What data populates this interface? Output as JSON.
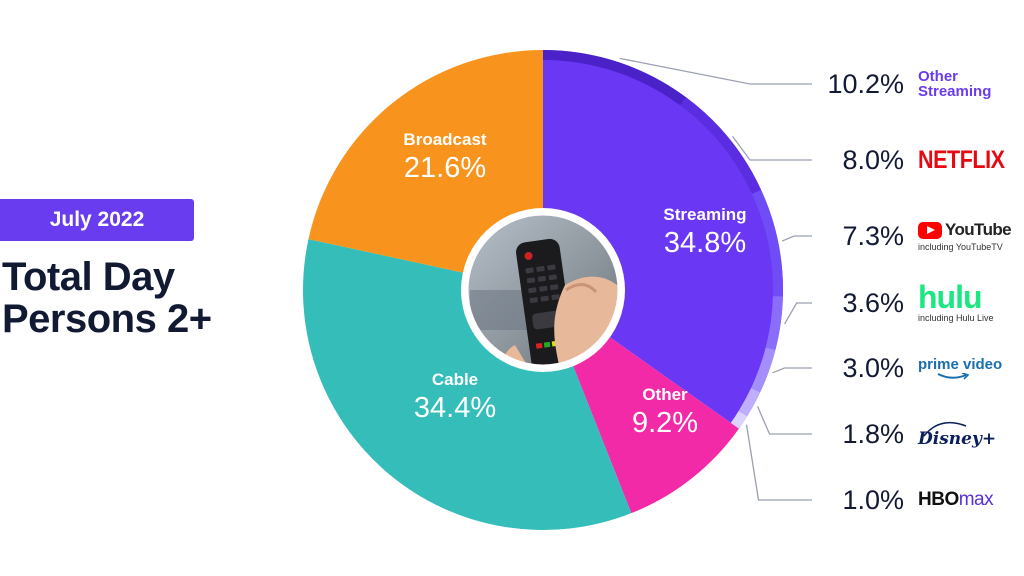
{
  "header": {
    "badge": "July 2022",
    "title_line1": "Total Day",
    "title_line2": "Persons 2+"
  },
  "chart_data": {
    "type": "pie",
    "variant": "donut",
    "categories": [
      "Streaming",
      "Other",
      "Cable",
      "Broadcast"
    ],
    "values": [
      34.8,
      9.2,
      34.4,
      21.6
    ],
    "labels": [
      "34.8%",
      "9.2%",
      "34.4%",
      "21.6%"
    ],
    "colors": [
      "#6a38f5",
      "#f22aa8",
      "#34bdb9",
      "#f8941d"
    ],
    "streaming_breakdown": {
      "labels": [
        "Other Streaming",
        "NETFLIX",
        "YouTube",
        "hulu",
        "prime video",
        "Disney+",
        "HBO max"
      ],
      "values": [
        10.2,
        8.0,
        7.3,
        3.6,
        3.0,
        1.8,
        1.0
      ],
      "pct_text": [
        "10.2%",
        "8.0%",
        "7.3%",
        "3.6%",
        "3.0%",
        "1.8%",
        "1.0%"
      ],
      "colors": [
        "#4a22c7",
        "#5a2de0",
        "#6f4cf6",
        "#8a6df8",
        "#a48ffa",
        "#bfaefc",
        "#dcd2fe"
      ]
    },
    "center_image": "tv-remote-photo"
  },
  "legend": {
    "other_streaming_line1": "Other",
    "other_streaming_line2": "Streaming",
    "netflix": "NETFLIX",
    "youtube": "YouTube",
    "youtube_sub": "including YouTubeTV",
    "hulu": "hulu",
    "hulu_sub": "including Hulu Live",
    "prime": "prime video",
    "disney": "Disney+",
    "hbo_hbo": "HBO",
    "hbo_max": "max"
  }
}
